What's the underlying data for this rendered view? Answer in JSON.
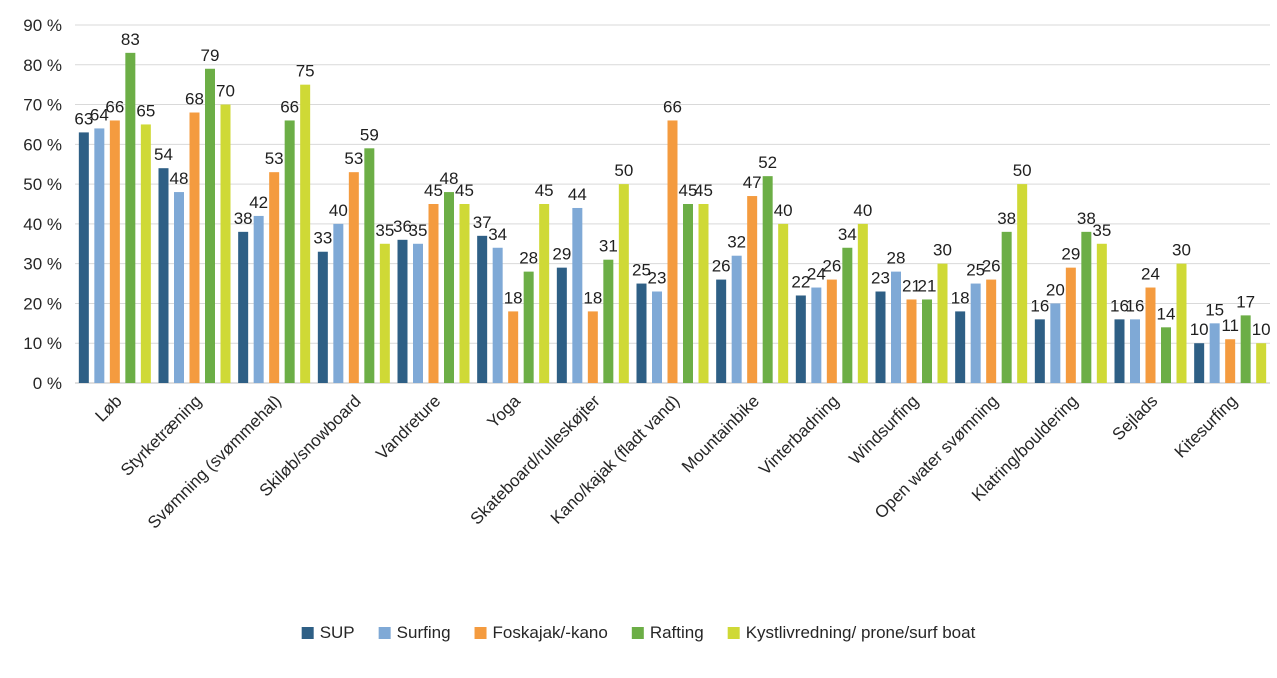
{
  "chart_data": {
    "type": "bar",
    "title": "",
    "xlabel": "",
    "ylabel": "",
    "ylim": [
      0,
      90
    ],
    "y_ticks": [
      "0 %",
      "10 %",
      "20 %",
      "30 %",
      "40 %",
      "50 %",
      "60 %",
      "70 %",
      "80 %",
      "90 %"
    ],
    "grid": true,
    "legend_position": "bottom",
    "categories": [
      "Løb",
      "Styrketræning",
      "Svømning (svømmehal)",
      "Skiløb/snowboard",
      "Vandreture",
      "Yoga",
      "Skateboard/rulleskøjter",
      "Kano/kajak (fladt vand)",
      "Mountainbike",
      "Vinterbadning",
      "Windsurfing",
      "Open water svømning",
      "Klatring/bouldering",
      "Sejlads",
      "Kitesurfing"
    ],
    "series": [
      {
        "name": "SUP",
        "color": "#2e5f85",
        "values": [
          63,
          54,
          38,
          33,
          36,
          37,
          29,
          25,
          26,
          22,
          23,
          18,
          16,
          16,
          10
        ],
        "labels": [
          "63",
          "54",
          "38",
          "33",
          "36",
          "37",
          "29",
          "25",
          "26",
          "22",
          "23",
          "18",
          "16",
          "16",
          "10"
        ]
      },
      {
        "name": "Surfing",
        "color": "#7fa9d6",
        "values": [
          64,
          48,
          42,
          40,
          35,
          34,
          44,
          23,
          32,
          24,
          28,
          25,
          20,
          16,
          15
        ],
        "labels": [
          "64",
          "48",
          "42",
          "40",
          "35",
          "34",
          "44",
          "23",
          "32",
          "24",
          "28",
          "25",
          "20",
          "16",
          "15"
        ]
      },
      {
        "name": "Foskajak/-kano",
        "color": "#f49b3f",
        "values": [
          66,
          68,
          53,
          53,
          45,
          18,
          18,
          66,
          47,
          26,
          21,
          26,
          29,
          24,
          11
        ],
        "labels": [
          "66",
          "68",
          "53",
          "53",
          "45",
          "18",
          "18",
          "66",
          "47",
          "26",
          "21",
          "26",
          "29",
          "24",
          "11"
        ]
      },
      {
        "name": "Rafting",
        "color": "#6cae46",
        "values": [
          83,
          79,
          66,
          59,
          48,
          28,
          31,
          45,
          52,
          34,
          21,
          38,
          38,
          14,
          17
        ],
        "labels": [
          "83",
          "79",
          "66",
          "59",
          "48",
          "28",
          "31",
          "45",
          "52",
          "34",
          "21",
          "38",
          "38",
          "14",
          "17"
        ]
      },
      {
        "name": "Kystlivredning/ prone/surf boat",
        "color": "#cfd936",
        "values": [
          65,
          70,
          75,
          35,
          45,
          45,
          50,
          45,
          40,
          40,
          30,
          50,
          35,
          30,
          10
        ],
        "labels": [
          "65",
          "70",
          "75",
          "35",
          "45",
          "45",
          "50",
          "45",
          "40",
          "40",
          "30",
          "50",
          "35",
          "30",
          "10"
        ]
      }
    ]
  }
}
